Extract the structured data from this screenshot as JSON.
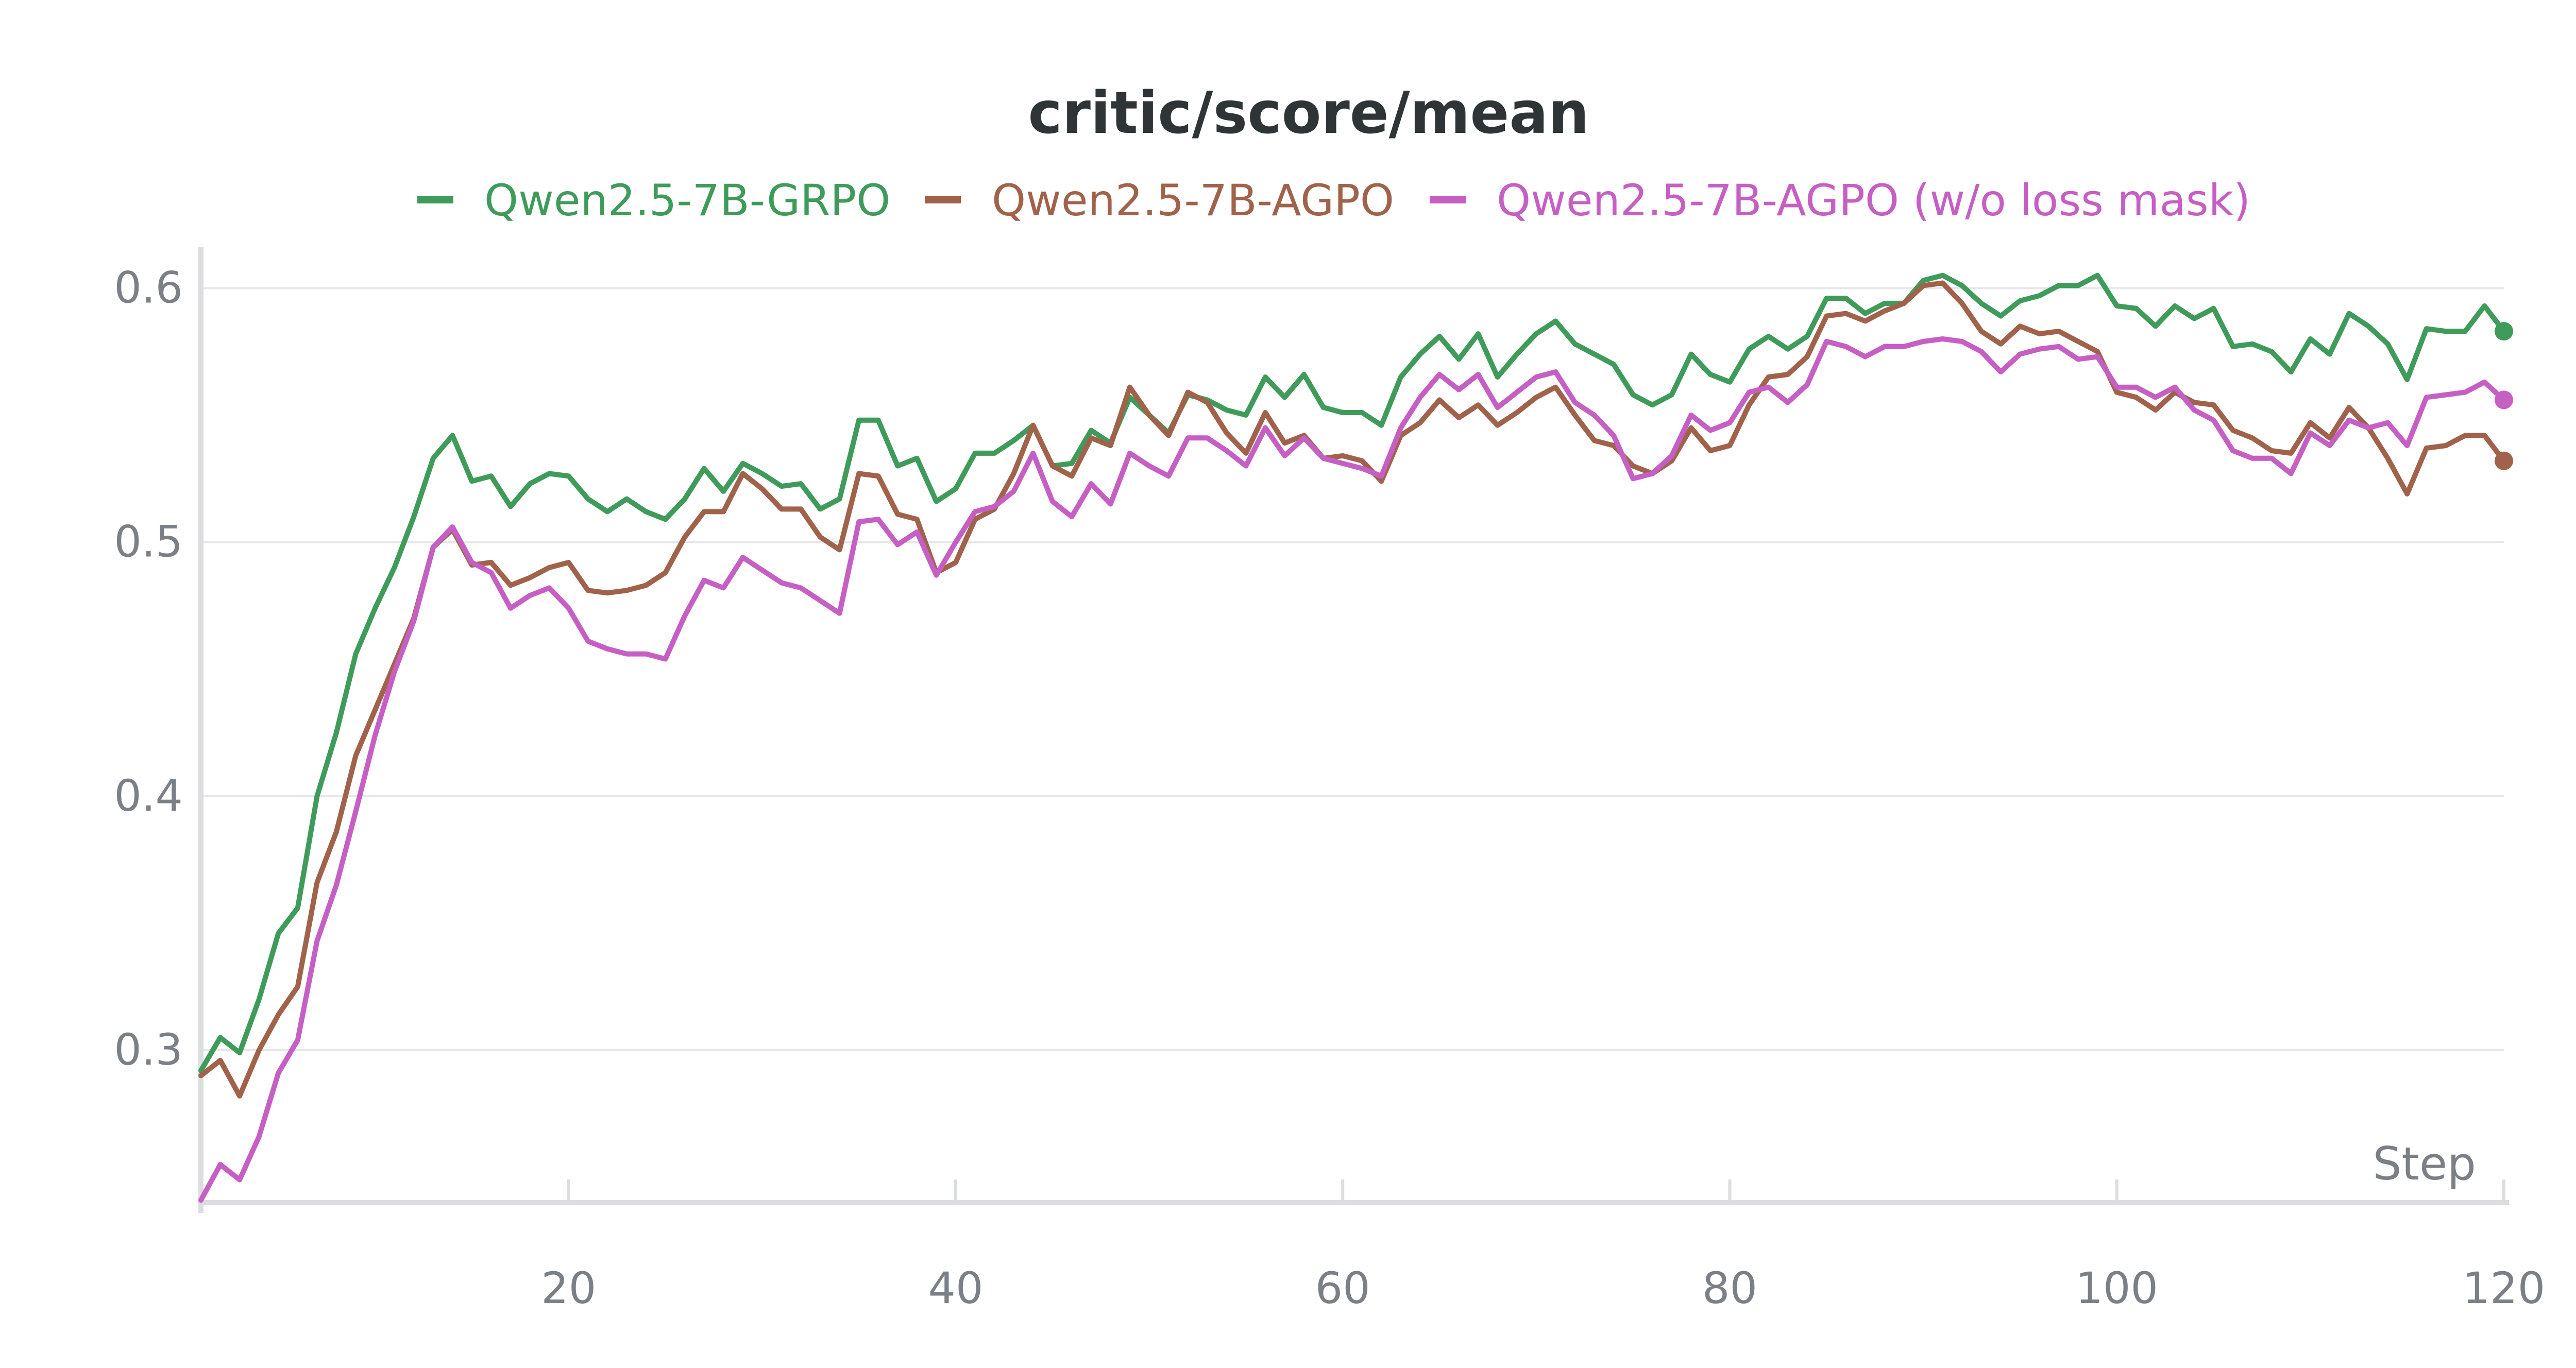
{
  "chart_data": {
    "type": "line",
    "title": "critic/score/mean",
    "xlabel": "Step",
    "ylabel": "",
    "xlim": [
      1,
      120
    ],
    "ylim": [
      0.24,
      0.61
    ],
    "x_ticks": [
      20,
      40,
      60,
      80,
      100,
      120
    ],
    "y_ticks": [
      0.3,
      0.4,
      0.5,
      0.6
    ],
    "x_tick_labels": [
      "20",
      "40",
      "60",
      "80",
      "100",
      "120"
    ],
    "y_tick_labels": [
      "0.3",
      "0.4",
      "0.5",
      "0.6"
    ],
    "grid": true,
    "legend_position": "top",
    "x": [
      1,
      2,
      3,
      4,
      5,
      6,
      7,
      8,
      9,
      10,
      11,
      12,
      13,
      14,
      15,
      16,
      17,
      18,
      19,
      20,
      21,
      22,
      23,
      24,
      25,
      26,
      27,
      28,
      29,
      30,
      31,
      32,
      33,
      34,
      35,
      36,
      37,
      38,
      39,
      40,
      41,
      42,
      43,
      44,
      45,
      46,
      47,
      48,
      49,
      50,
      51,
      52,
      53,
      54,
      55,
      56,
      57,
      58,
      59,
      60,
      61,
      62,
      63,
      64,
      65,
      66,
      67,
      68,
      69,
      70,
      71,
      72,
      73,
      74,
      75,
      76,
      77,
      78,
      79,
      80,
      81,
      82,
      83,
      84,
      85,
      86,
      87,
      88,
      89,
      90,
      91,
      92,
      93,
      94,
      95,
      96,
      97,
      98,
      99,
      100,
      101,
      102,
      103,
      104,
      105,
      106,
      107,
      108,
      109,
      110,
      111,
      112,
      113,
      114,
      115,
      116,
      117,
      118,
      119,
      120
    ],
    "series": [
      {
        "name": "Qwen2.5-7B-GRPO",
        "color": "#3f9b5a",
        "values": [
          0.292,
          0.305,
          0.299,
          0.32,
          0.346,
          0.356,
          0.4,
          0.425,
          0.456,
          0.474,
          0.49,
          0.51,
          0.533,
          0.542,
          0.524,
          0.526,
          0.514,
          0.523,
          0.527,
          0.526,
          0.517,
          0.512,
          0.517,
          0.512,
          0.509,
          0.517,
          0.529,
          0.52,
          0.531,
          0.527,
          0.522,
          0.523,
          0.513,
          0.517,
          0.548,
          0.548,
          0.53,
          0.533,
          0.516,
          0.521,
          0.535,
          0.535,
          0.54,
          0.546,
          0.53,
          0.531,
          0.544,
          0.539,
          0.557,
          0.55,
          0.543,
          0.558,
          0.556,
          0.552,
          0.55,
          0.565,
          0.557,
          0.566,
          0.553,
          0.551,
          0.551,
          0.546,
          0.565,
          0.574,
          0.581,
          0.572,
          0.582,
          0.565,
          0.574,
          0.582,
          0.587,
          0.578,
          0.574,
          0.57,
          0.558,
          0.554,
          0.558,
          0.574,
          0.566,
          0.563,
          0.576,
          0.581,
          0.576,
          0.581,
          0.596,
          0.596,
          0.59,
          0.594,
          0.594,
          0.603,
          0.605,
          0.601,
          0.594,
          0.589,
          0.595,
          0.597,
          0.601,
          0.601,
          0.605,
          0.593,
          0.592,
          0.585,
          0.593,
          0.588,
          0.592,
          0.577,
          0.578,
          0.575,
          0.567,
          0.58,
          0.574,
          0.59,
          0.585,
          0.578,
          0.564,
          0.584,
          0.583,
          0.583,
          0.593,
          0.583
        ]
      },
      {
        "name": "Qwen2.5-7B-AGPO",
        "color": "#a0624a",
        "values": [
          0.29,
          0.296,
          0.282,
          0.3,
          0.314,
          0.325,
          0.366,
          0.386,
          0.416,
          0.434,
          0.452,
          0.47,
          0.498,
          0.505,
          0.491,
          0.492,
          0.483,
          0.486,
          0.49,
          0.492,
          0.481,
          0.48,
          0.481,
          0.483,
          0.488,
          0.502,
          0.512,
          0.512,
          0.527,
          0.521,
          0.513,
          0.513,
          0.502,
          0.497,
          0.527,
          0.526,
          0.511,
          0.509,
          0.488,
          0.492,
          0.509,
          0.513,
          0.527,
          0.546,
          0.53,
          0.526,
          0.541,
          0.538,
          0.561,
          0.55,
          0.542,
          0.559,
          0.555,
          0.543,
          0.535,
          0.551,
          0.539,
          0.542,
          0.533,
          0.534,
          0.532,
          0.524,
          0.542,
          0.547,
          0.556,
          0.549,
          0.554,
          0.546,
          0.551,
          0.557,
          0.561,
          0.55,
          0.54,
          0.538,
          0.53,
          0.527,
          0.532,
          0.545,
          0.536,
          0.538,
          0.554,
          0.565,
          0.566,
          0.573,
          0.589,
          0.59,
          0.587,
          0.591,
          0.594,
          0.601,
          0.602,
          0.594,
          0.583,
          0.578,
          0.585,
          0.582,
          0.583,
          0.579,
          0.575,
          0.559,
          0.557,
          0.552,
          0.559,
          0.555,
          0.554,
          0.544,
          0.541,
          0.536,
          0.535,
          0.547,
          0.541,
          0.553,
          0.545,
          0.533,
          0.519,
          0.537,
          0.538,
          0.542,
          0.542,
          0.532
        ]
      },
      {
        "name": "Qwen2.5-7B-AGPO (w/o loss mask)",
        "color": "#c65fc4",
        "values": [
          0.241,
          0.255,
          0.249,
          0.266,
          0.291,
          0.304,
          0.343,
          0.365,
          0.394,
          0.424,
          0.449,
          0.469,
          0.498,
          0.506,
          0.492,
          0.488,
          0.474,
          0.479,
          0.482,
          0.474,
          0.461,
          0.458,
          0.456,
          0.456,
          0.454,
          0.471,
          0.485,
          0.482,
          0.494,
          0.489,
          0.484,
          0.482,
          0.477,
          0.472,
          0.508,
          0.509,
          0.499,
          0.504,
          0.487,
          0.5,
          0.512,
          0.514,
          0.52,
          0.535,
          0.516,
          0.51,
          0.523,
          0.515,
          0.535,
          0.53,
          0.526,
          0.541,
          0.541,
          0.536,
          0.53,
          0.545,
          0.534,
          0.541,
          0.533,
          0.531,
          0.529,
          0.526,
          0.545,
          0.557,
          0.566,
          0.56,
          0.566,
          0.553,
          0.559,
          0.565,
          0.567,
          0.555,
          0.55,
          0.542,
          0.525,
          0.527,
          0.534,
          0.55,
          0.544,
          0.547,
          0.559,
          0.561,
          0.555,
          0.562,
          0.579,
          0.577,
          0.573,
          0.577,
          0.577,
          0.579,
          0.58,
          0.579,
          0.575,
          0.567,
          0.574,
          0.576,
          0.577,
          0.572,
          0.573,
          0.561,
          0.561,
          0.557,
          0.561,
          0.552,
          0.548,
          0.536,
          0.533,
          0.533,
          0.527,
          0.543,
          0.538,
          0.548,
          0.545,
          0.547,
          0.538,
          0.557,
          0.558,
          0.559,
          0.563,
          0.556
        ]
      }
    ]
  }
}
